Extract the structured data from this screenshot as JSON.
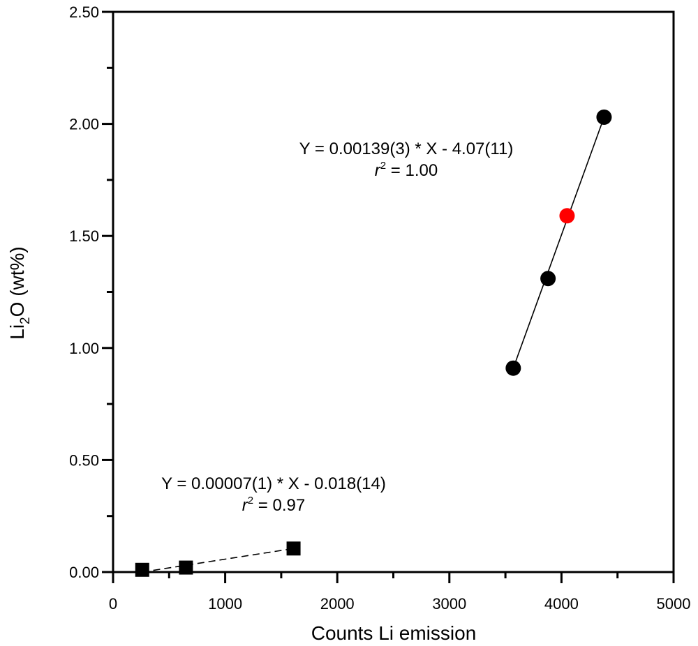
{
  "chart_data": {
    "type": "scatter",
    "xlabel": "Counts Li emission",
    "ylabel_main": "Li",
    "ylabel_sub": "2",
    "ylabel_rest": "O (wt%)",
    "xlim": [
      0,
      5000
    ],
    "ylim": [
      0,
      2.5
    ],
    "x_ticks": [
      0,
      1000,
      2000,
      3000,
      4000,
      5000
    ],
    "x_tick_labels": [
      "0",
      "1000",
      "2000",
      "3000",
      "4000",
      "5000"
    ],
    "x_minor_ticks": [
      500,
      1500,
      2500,
      3500,
      4500
    ],
    "y_ticks": [
      0,
      0.5,
      1.0,
      1.5,
      2.0,
      2.5
    ],
    "y_tick_labels": [
      "0.00",
      "0.50",
      "1.00",
      "1.50",
      "2.00",
      "2.50"
    ],
    "y_minor_ticks": [
      0.25,
      0.75,
      1.25,
      1.75,
      2.25
    ],
    "grid": false,
    "series": [
      {
        "marker": "circle",
        "color": "#000000",
        "x": [
          3570,
          3880,
          4380
        ],
        "y": [
          0.91,
          1.31,
          2.03
        ]
      },
      {
        "marker": "circle",
        "color": "#ff0000",
        "x": [
          4050
        ],
        "y": [
          1.59
        ]
      },
      {
        "marker": "square",
        "color": "#000000",
        "x": [
          260,
          650,
          1610
        ],
        "y": [
          0.01,
          0.02,
          0.105
        ]
      }
    ],
    "fit_lines": [
      {
        "style": "solid",
        "x": [
          3570,
          4380
        ],
        "y": [
          0.91,
          2.03
        ],
        "equation": "Y = 0.00139(3) * X - 4.07(11)",
        "r2_value": " = 1.00"
      },
      {
        "style": "dashed",
        "x": [
          260,
          1610
        ],
        "y": [
          0.0,
          0.105
        ],
        "equation": "Y = 0.00007(1) * X - 0.018(14)",
        "r2_value": " = 0.97"
      }
    ],
    "r2_symbol": "r",
    "r2_exponent": "2"
  }
}
